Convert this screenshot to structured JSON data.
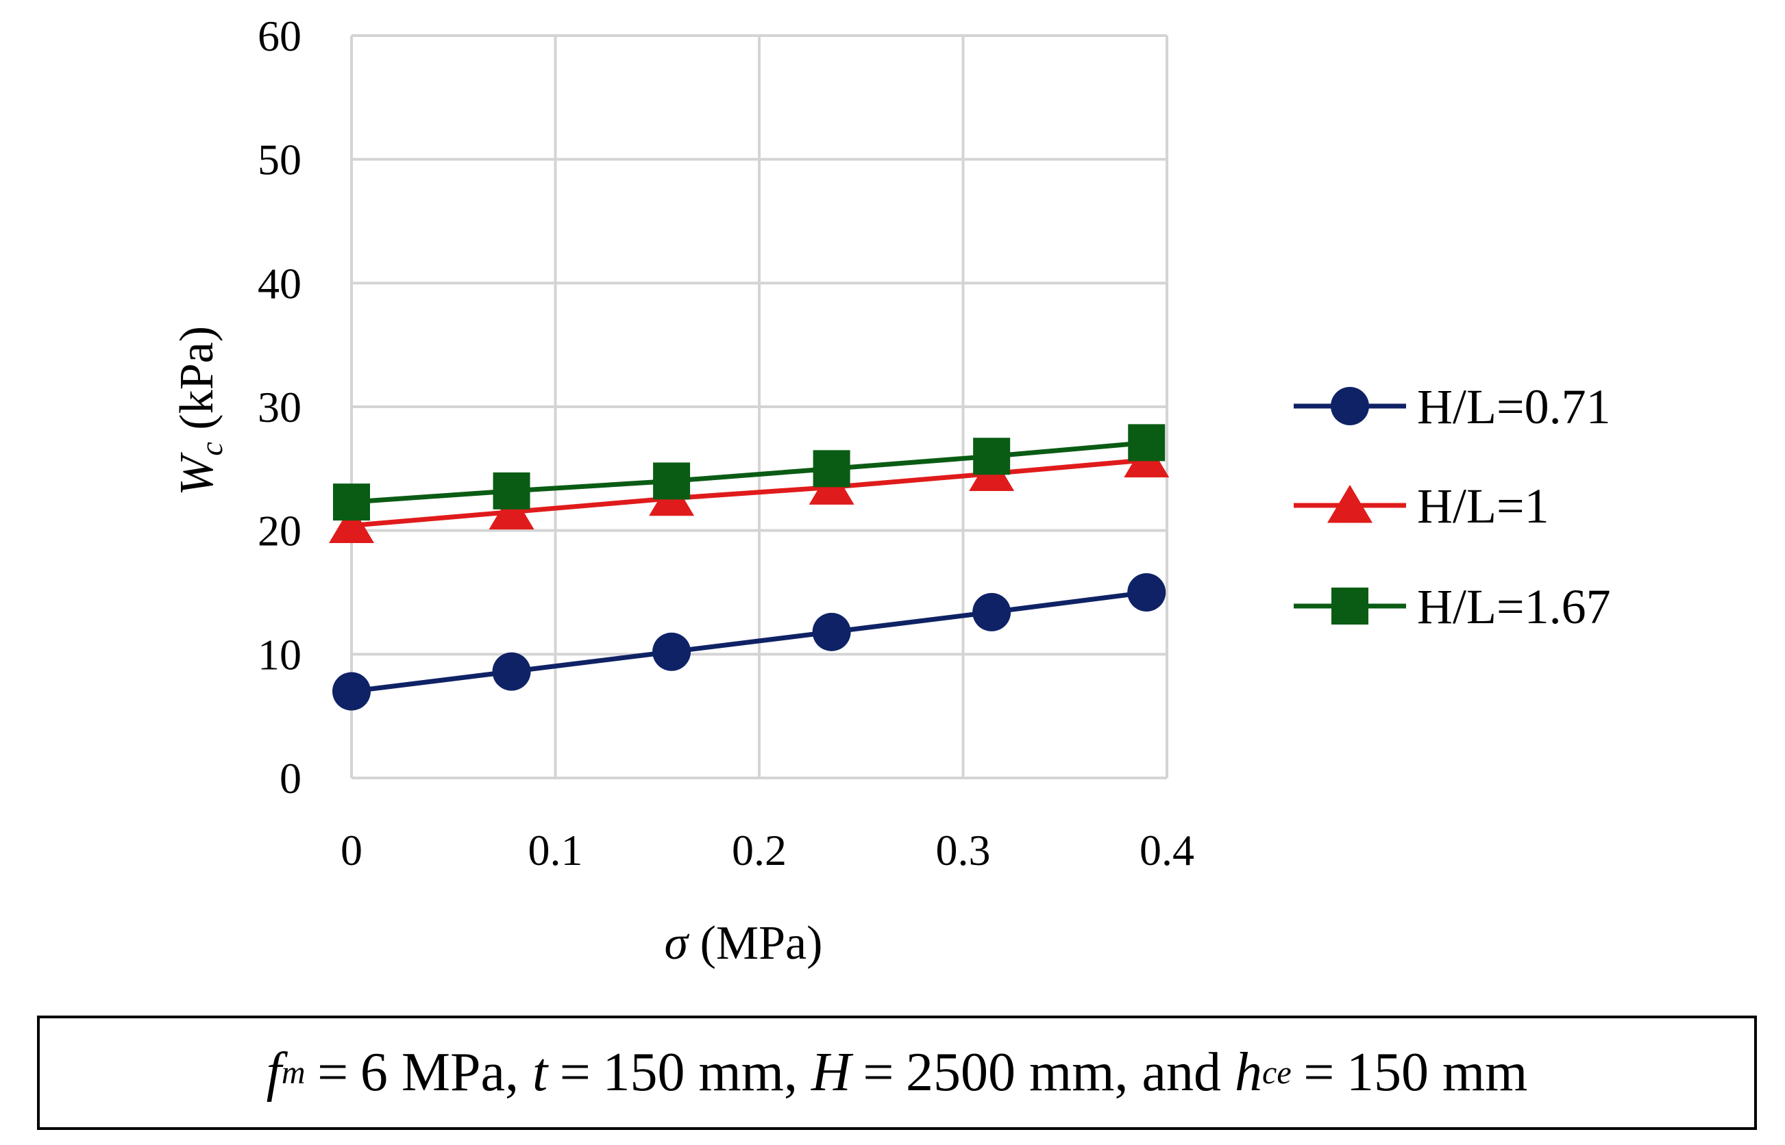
{
  "chart_data": {
    "type": "line",
    "title": "",
    "xlabel": "σ (MPa)",
    "ylabel": "Wc (kPa)",
    "x": [
      0,
      0.0785,
      0.157,
      0.2355,
      0.314,
      0.39
    ],
    "xlim": [
      0,
      0.4
    ],
    "ylim": [
      0,
      60
    ],
    "xticks": [
      "0",
      "0.1",
      "0.2",
      "0.3",
      "0.4"
    ],
    "yticks": [
      "0",
      "10",
      "20",
      "30",
      "40",
      "50",
      "60"
    ],
    "grid": true,
    "legend_position": "right",
    "series": [
      {
        "name": "H/L=0.71",
        "color": "#0f2266",
        "marker": "circle",
        "values": [
          7.0,
          8.6,
          10.2,
          11.8,
          13.4,
          15.0
        ]
      },
      {
        "name": "H/L=1",
        "color": "#e01b1b",
        "marker": "triangle",
        "values": [
          20.4,
          21.5,
          22.6,
          23.5,
          24.6,
          25.7
        ]
      },
      {
        "name": "H/L=1.67",
        "color": "#0a5c14",
        "marker": "square",
        "values": [
          22.3,
          23.2,
          24.0,
          25.0,
          26.0,
          27.1
        ]
      }
    ]
  },
  "caption": {
    "fm_sym": "f",
    "fm_sub": "m",
    "eq": "=",
    "fm_val": "6 MPa,",
    "t_sym": "t",
    "t_val": "150 mm,",
    "H_sym": "H",
    "H_val": "2500 mm, and",
    "h_sym": "h",
    "h_sub": "ce",
    "h_val": "150 mm"
  }
}
